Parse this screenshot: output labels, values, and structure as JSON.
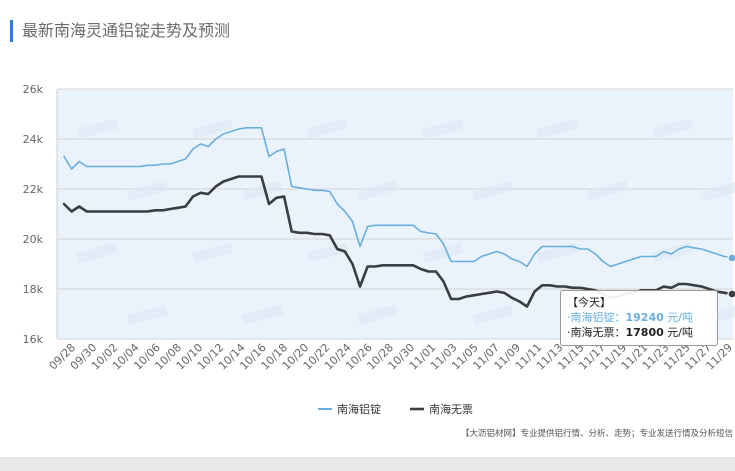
{
  "page": {
    "title": "最新南海灵通铝锭走势及预测",
    "footer_note": "【大沥铝材网】专业提供铝行情、分析、走势；专业发送行情及分析短信"
  },
  "tooltip": {
    "heading": "【今天】",
    "rows": [
      {
        "label": "南海铝锭",
        "value": "19240",
        "unit": "元/吨"
      },
      {
        "label": "南海无票",
        "value": "17800",
        "unit": "元/吨"
      }
    ]
  },
  "colors": {
    "series_a": "#6aaee0",
    "series_b": "#3a3d42",
    "plot_bg": "#eaf3fb",
    "grid": "#d6d6d6",
    "title_accent": "#2f7fd1"
  },
  "chart_data": {
    "type": "line",
    "ylim": [
      16000,
      26000
    ],
    "y_ticks": [
      "16k",
      "18k",
      "20k",
      "22k",
      "24k",
      "26k"
    ],
    "x_ticks": [
      "09/28",
      "09/30",
      "10/02",
      "10/04",
      "10/06",
      "10/08",
      "10/10",
      "10/12",
      "10/14",
      "10/16",
      "10/18",
      "10/20",
      "10/22",
      "10/24",
      "10/26",
      "10/28",
      "10/30",
      "11/01",
      "11/03",
      "11/05",
      "11/07",
      "11/09",
      "11/11",
      "11/13",
      "11/15",
      "11/17",
      "11/19",
      "11/21",
      "11/23",
      "11/25",
      "11/27",
      "11/29"
    ],
    "grid": true,
    "legend": "bottom-center",
    "series": [
      {
        "name": "南海铝锭",
        "values": [
          23300,
          22800,
          23100,
          22900,
          22900,
          22900,
          22900,
          22900,
          22900,
          22900,
          22900,
          22950,
          22950,
          23000,
          23000,
          23100,
          23200,
          23600,
          23800,
          23700,
          24000,
          24200,
          24300,
          24400,
          24450,
          24450,
          24450,
          23300,
          23500,
          23600,
          22100,
          22050,
          22000,
          21950,
          21950,
          21900,
          21400,
          21100,
          20700,
          19700,
          20500,
          20550,
          20550,
          20550,
          20550,
          20550,
          20550,
          20300,
          20250,
          20200,
          19800,
          19100,
          19100,
          19100,
          19100,
          19300,
          19400,
          19500,
          19400,
          19200,
          19100,
          18900,
          19400,
          19700,
          19700,
          19700,
          19700,
          19700,
          19600,
          19600,
          19400,
          19100,
          18900,
          19000,
          19100,
          19200,
          19300,
          19300,
          19300,
          19500,
          19400,
          19600,
          19700,
          19650,
          19600,
          19500,
          19400,
          19300,
          19240
        ]
      },
      {
        "name": "南海无票",
        "values": [
          21400,
          21100,
          21300,
          21100,
          21100,
          21100,
          21100,
          21100,
          21100,
          21100,
          21100,
          21100,
          21150,
          21150,
          21200,
          21250,
          21300,
          21700,
          21850,
          21800,
          22100,
          22300,
          22400,
          22500,
          22500,
          22500,
          22500,
          21400,
          21650,
          21700,
          20300,
          20250,
          20250,
          20200,
          20200,
          20150,
          19600,
          19500,
          19000,
          18100,
          18900,
          18900,
          18950,
          18950,
          18950,
          18950,
          18950,
          18800,
          18700,
          18700,
          18300,
          17600,
          17600,
          17700,
          17750,
          17800,
          17850,
          17900,
          17850,
          17650,
          17500,
          17300,
          17900,
          18150,
          18150,
          18100,
          18100,
          18050,
          18050,
          18000,
          17950,
          17800,
          17650,
          17700,
          17800,
          17850,
          17950,
          17950,
          17950,
          18100,
          18050,
          18200,
          18200,
          18150,
          18100,
          18000,
          17900,
          17850,
          17800
        ]
      }
    ]
  }
}
